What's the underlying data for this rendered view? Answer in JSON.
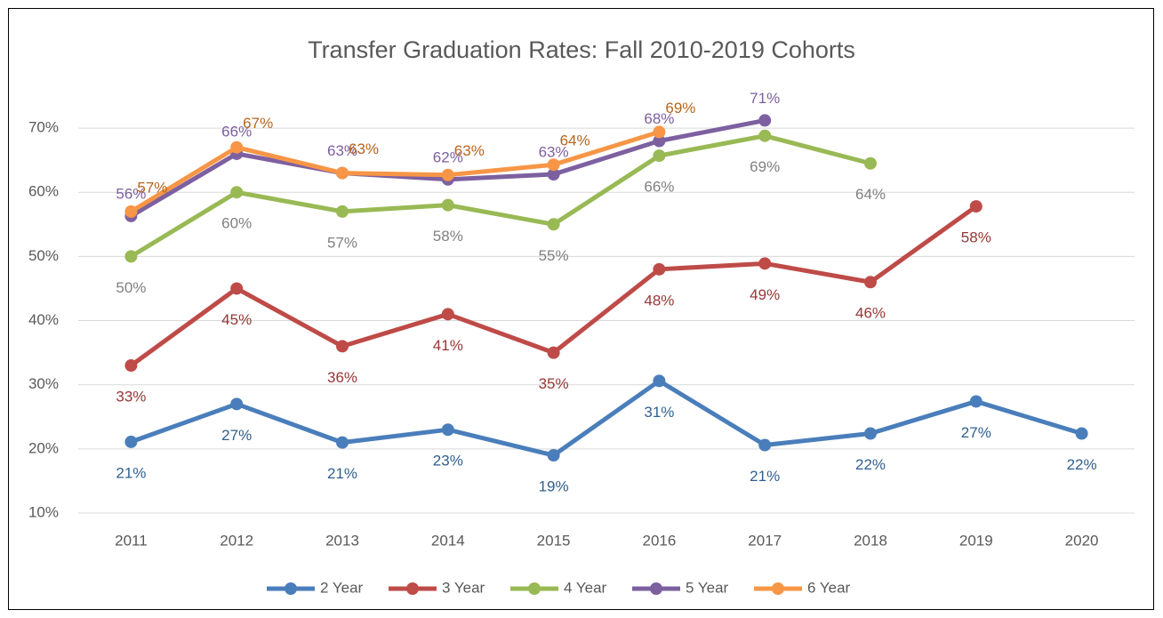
{
  "chart_data": {
    "type": "line",
    "title": "Transfer Graduation Rates: Fall 2010-2019 Cohorts",
    "categories": [
      "2011",
      "2012",
      "2013",
      "2014",
      "2015",
      "2016",
      "2017",
      "2018",
      "2019",
      "2020"
    ],
    "ylim": [
      10,
      75
    ],
    "yticks": [
      {
        "value": 10,
        "label": "10%"
      },
      {
        "value": 20,
        "label": "20%"
      },
      {
        "value": 30,
        "label": "30%"
      },
      {
        "value": 40,
        "label": "40%"
      },
      {
        "value": 50,
        "label": "50%"
      },
      {
        "value": 60,
        "label": "60%"
      },
      {
        "value": 70,
        "label": "70%"
      }
    ],
    "grid": true,
    "legend": "bottom",
    "series": [
      {
        "name": "2 Year",
        "color": "#4a7ebb",
        "label_color": "#2f5f8f",
        "values": [
          21.1,
          27,
          21,
          23,
          19,
          30.6,
          20.6,
          22.4,
          27.4,
          22.4
        ],
        "value_labels": [
          "21%",
          "27%",
          "21%",
          "23%",
          "19%",
          "31%",
          "21%",
          "22%",
          "27%",
          "22%"
        ]
      },
      {
        "name": "3 Year",
        "color": "#be4b48",
        "label_color": "#963634",
        "values": [
          33,
          45,
          36,
          41,
          35,
          48,
          48.9,
          46,
          57.8,
          null
        ],
        "value_labels": [
          "33%",
          "45%",
          "36%",
          "41%",
          "35%",
          "48%",
          "49%",
          "46%",
          "58%",
          null
        ]
      },
      {
        "name": "4 Year",
        "color": "#98b954",
        "label_color": "#808080",
        "values": [
          50,
          60,
          57,
          58,
          55,
          65.7,
          68.8,
          64.5,
          null,
          null
        ],
        "value_labels": [
          "50%",
          "60%",
          "57%",
          "58%",
          "55%",
          "66%",
          "69%",
          "64%",
          null,
          null
        ]
      },
      {
        "name": "5 Year",
        "color": "#7d60a0",
        "label_color": "#7d60a0",
        "values": [
          56.3,
          66,
          63,
          62,
          62.8,
          68,
          71.2,
          null,
          null,
          null
        ],
        "value_labels": [
          "56%",
          "66%",
          "63%",
          "62%",
          "63%",
          "68%",
          "71%",
          null,
          null,
          null
        ]
      },
      {
        "name": "6 Year",
        "color": "#f79646",
        "label_color": "#b5651d",
        "values": [
          57,
          67,
          63,
          62.7,
          64.3,
          69.4,
          null,
          null,
          null,
          null
        ],
        "value_labels": [
          "57%",
          "67%",
          "63%",
          "63%",
          "64%",
          "69%",
          null,
          null,
          null,
          null
        ]
      }
    ]
  }
}
